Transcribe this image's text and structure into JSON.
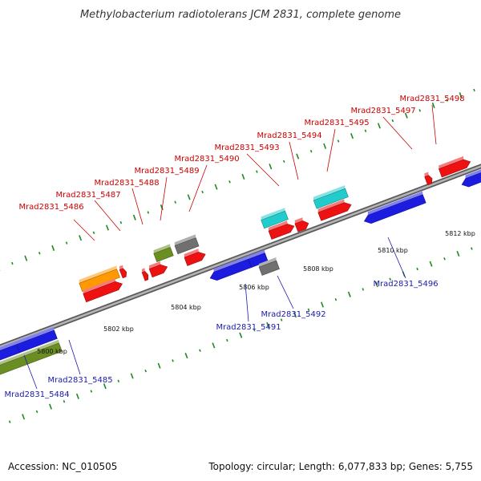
{
  "title": "Methylobacterium radiotolerans JCM 2831, complete genome",
  "footer": {
    "accession": "Accession: NC_010505",
    "summary": "Topology: circular; Length: 6,077,833 bp; Genes: 5,755"
  },
  "colors": {
    "backbone": "#8a8a8a",
    "tick": "#1f8a1f",
    "forward_label": "#cc0000",
    "reverse_label": "#1a1aaa",
    "gene_red": "#ee1111",
    "gene_orange": "#ff9900",
    "gene_olive": "#6b8e23",
    "gene_gray": "#707070",
    "gene_cyan": "#22cccc",
    "gene_blue": "#1c1ce0"
  },
  "scale_labels": [
    "5800 kbp",
    "5802 kbp",
    "5804 kbp",
    "5806 kbp",
    "5808 kbp",
    "5810 kbp",
    "5812 kbp"
  ],
  "forward_labels": [
    "Mrad2831_5486",
    "Mrad2831_5487",
    "Mrad2831_5488",
    "Mrad2831_5489",
    "Mrad2831_5490",
    "Mrad2831_5493",
    "Mrad2831_5494",
    "Mrad2831_5495",
    "Mrad2831_5497",
    "Mrad2831_5498"
  ],
  "reverse_labels": [
    "Mrad2831_5484",
    "Mrad2831_5485",
    "Mrad2831_5491",
    "Mrad2831_5492",
    "Mrad2831_5496"
  ]
}
